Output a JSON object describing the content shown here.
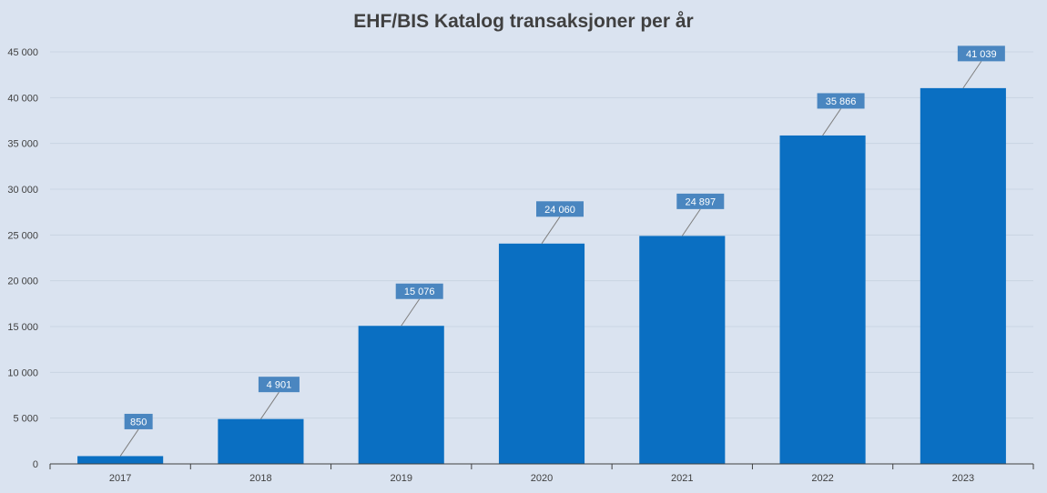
{
  "chart_data": {
    "type": "bar",
    "title": "EHF/BIS Katalog transaksjoner per år",
    "categories": [
      "2017",
      "2018",
      "2019",
      "2020",
      "2021",
      "2022",
      "2023"
    ],
    "values": [
      850,
      4901,
      15076,
      24060,
      24897,
      35866,
      41039
    ],
    "value_labels": [
      "850",
      "4 901",
      "15 076",
      "24 060",
      "24 897",
      "35 866",
      "41 039"
    ],
    "ylim": [
      0,
      45000
    ],
    "y_ticks": [
      0,
      5000,
      10000,
      15000,
      20000,
      25000,
      30000,
      35000,
      40000,
      45000
    ],
    "y_tick_labels": [
      "0",
      "5 000",
      "10 000",
      "15 000",
      "20 000",
      "25 000",
      "30 000",
      "35 000",
      "40 000",
      "45 000"
    ],
    "xlabel": "",
    "ylabel": "",
    "grid": true,
    "legend": "none",
    "colors": {
      "bar": "#0a6fc2",
      "label_box": "#4a86c0",
      "label_text": "#ffffff",
      "background": "#dae3f0",
      "grid": "#c9d4e3",
      "axis_text": "#404040"
    }
  }
}
